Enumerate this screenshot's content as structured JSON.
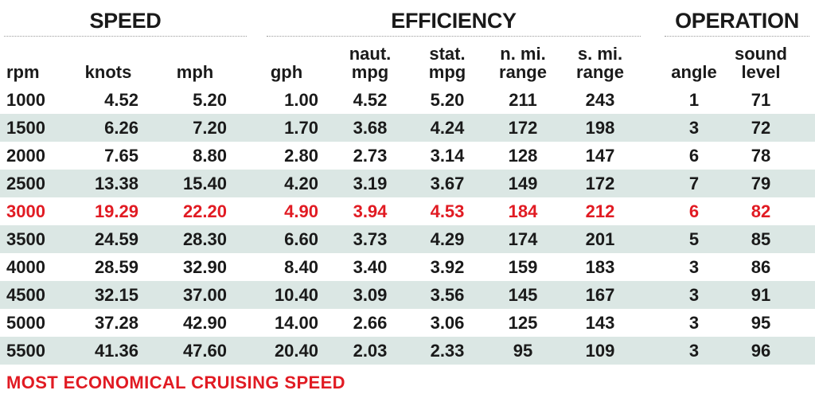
{
  "groups": [
    {
      "label": "SPEED"
    },
    {
      "label": "EFFICIENCY"
    },
    {
      "label": "OPERATION"
    }
  ],
  "headers": [
    "rpm",
    "knots",
    "mph",
    "gph",
    "naut.\nmpg",
    "stat.\nmpg",
    "n. mi.\nrange",
    "s. mi.\nrange",
    "angle",
    "sound\nlevel"
  ],
  "rows": [
    [
      "1000",
      "4.52",
      "5.20",
      "1.00",
      "4.52",
      "5.20",
      "211",
      "243",
      "1",
      "71"
    ],
    [
      "1500",
      "6.26",
      "7.20",
      "1.70",
      "3.68",
      "4.24",
      "172",
      "198",
      "3",
      "72"
    ],
    [
      "2000",
      "7.65",
      "8.80",
      "2.80",
      "2.73",
      "3.14",
      "128",
      "147",
      "6",
      "78"
    ],
    [
      "2500",
      "13.38",
      "15.40",
      "4.20",
      "3.19",
      "3.67",
      "149",
      "172",
      "7",
      "79"
    ],
    [
      "3000",
      "19.29",
      "22.20",
      "4.90",
      "3.94",
      "4.53",
      "184",
      "212",
      "6",
      "82"
    ],
    [
      "3500",
      "24.59",
      "28.30",
      "6.60",
      "3.73",
      "4.29",
      "174",
      "201",
      "5",
      "85"
    ],
    [
      "4000",
      "28.59",
      "32.90",
      "8.40",
      "3.40",
      "3.92",
      "159",
      "183",
      "3",
      "86"
    ],
    [
      "4500",
      "32.15",
      "37.00",
      "10.40",
      "3.09",
      "3.56",
      "145",
      "167",
      "3",
      "91"
    ],
    [
      "5000",
      "37.28",
      "42.90",
      "14.00",
      "2.66",
      "3.06",
      "125",
      "143",
      "3",
      "95"
    ],
    [
      "5500",
      "41.36",
      "47.60",
      "20.40",
      "2.03",
      "2.33",
      "95",
      "109",
      "3",
      "96"
    ]
  ],
  "highlight_row_index": 4,
  "highlight_color": "#e11b23",
  "shade_color": "#dbe7e4",
  "footnote": "MOST ECONOMICAL CRUISING SPEED"
}
